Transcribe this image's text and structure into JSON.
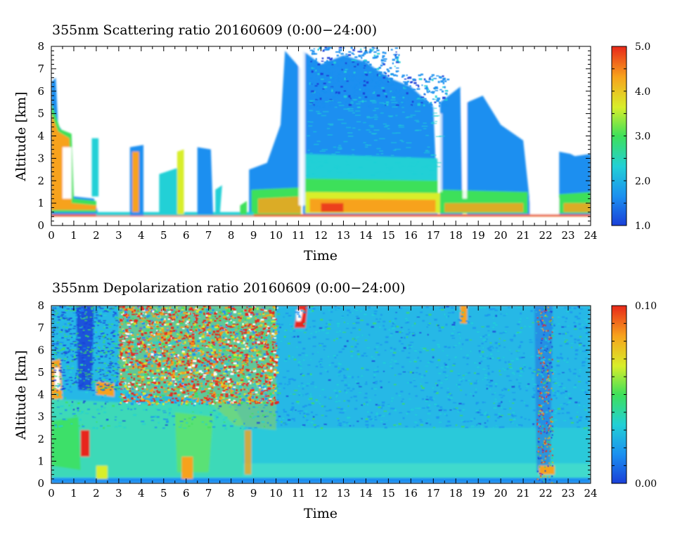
{
  "chart_data": [
    {
      "type": "heatmap",
      "title": "355nm  Scattering ratio   20160609  (0:00−24:00)",
      "xlabel": "Time",
      "ylabel": "Altitude  [km]",
      "x_ticks": [
        "0",
        "1",
        "2",
        "3",
        "4",
        "5",
        "6",
        "7",
        "8",
        "9",
        "10",
        "11",
        "12",
        "13",
        "14",
        "15",
        "16",
        "17",
        "18",
        "19",
        "20",
        "21",
        "22",
        "23",
        "24"
      ],
      "y_ticks": [
        "0",
        "1",
        "2",
        "3",
        "4",
        "5",
        "6",
        "7",
        "8"
      ],
      "xlim": [
        0,
        24
      ],
      "ylim": [
        0,
        8
      ],
      "colorbar": {
        "range": [
          1.0,
          5.0
        ],
        "tick_labels": [
          "5.0",
          "4.0",
          "3.0",
          "2.0",
          "1.0"
        ],
        "tick_values": [
          5.0,
          4.0,
          3.0,
          2.0,
          1.0
        ]
      },
      "colormap": [
        "#1a3fd8",
        "#1b8ff0",
        "#22d0d6",
        "#3ee05a",
        "#d8ee2a",
        "#f7a21c",
        "#e8281a"
      ]
    },
    {
      "type": "heatmap",
      "title": "355nm  Depolarization ratio   20160609  (0:00−24:00)",
      "xlabel": "Time",
      "ylabel": "Altitude  [km]",
      "x_ticks": [
        "0",
        "1",
        "2",
        "3",
        "4",
        "5",
        "6",
        "7",
        "8",
        "9",
        "10",
        "11",
        "12",
        "13",
        "14",
        "15",
        "16",
        "17",
        "18",
        "19",
        "20",
        "21",
        "22",
        "23",
        "24"
      ],
      "y_ticks": [
        "0",
        "1",
        "2",
        "3",
        "4",
        "5",
        "6",
        "7",
        "8"
      ],
      "xlim": [
        0,
        24
      ],
      "ylim": [
        0,
        8
      ],
      "colorbar": {
        "range": [
          0.0,
          0.1
        ],
        "tick_labels": [
          "0.10",
          "0.00"
        ],
        "tick_values": [
          0.1,
          0.0
        ]
      },
      "colormap": [
        "#1a3fd8",
        "#1b8ff0",
        "#22d0d6",
        "#3ee05a",
        "#d8ee2a",
        "#f7a21c",
        "#e8281a"
      ]
    }
  ]
}
